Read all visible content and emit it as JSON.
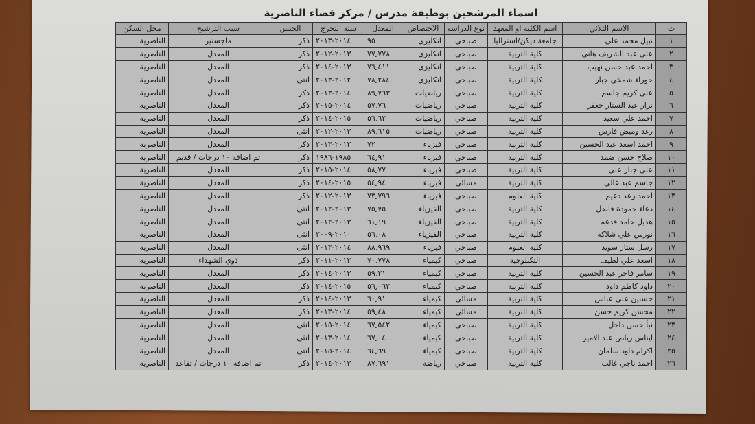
{
  "title": "اسماء المرشحين بوظيفة مدرس / مركز قضاء الناصرية",
  "headers": [
    "ت",
    "الاسم الثلاثي",
    "اسم الكليه او المعهد",
    "نوع الدراسه",
    "الاختصاص",
    "المعدل",
    "سنة التخرج",
    "الجنس",
    "سبب الترشيح",
    "محل السكن"
  ],
  "rows": [
    [
      "١",
      "نبيل محمد علي",
      "جامعة ديكن/استراليا",
      "صباحي",
      "انكليزي",
      "٩٥",
      "٢٠١٤-٢٠١٣",
      "ذكر",
      "ماجستير",
      "الناصرية"
    ],
    [
      "٢",
      "علي عبد الشريف هاني",
      "كلية التربية",
      "صباحي",
      "انكليزي",
      "٧٧٫٧٧٨",
      "٢٠١٣-٢٠١٢",
      "ذكر",
      "المعدل",
      "الناصرية"
    ],
    [
      "٣",
      "احمد عبد حسن نهيب",
      "كلية التربية",
      "صباحي",
      "انكليزي",
      "٧٦٫٤١١",
      "٢٠١٣-٢٠١٤",
      "ذكر",
      "المعدل",
      "الناصرية"
    ],
    [
      "٤",
      "حوراء شمخي جبار",
      "كلية التربية",
      "صباحي",
      "انكليزي",
      "٧٨٫٢٨٤",
      "٢٠١٢-٢٠١٣",
      "انثى",
      "المعدل",
      "الناصرية"
    ],
    [
      "٥",
      "علي كريم جاسم",
      "كلية التربية",
      "صباحي",
      "رياضيات",
      "٨٩٫٧٦٣",
      "٢٠١٤-٢٠١٣",
      "ذكر",
      "المعدل",
      "الناصرية"
    ],
    [
      "٦",
      "نزار عبد الستار جعفر",
      "كلية التربية",
      "صباحي",
      "رياضيات",
      "٥٧٫٧٦",
      "٢٠١٤-٢٠١٥",
      "ذكر",
      "المعدل",
      "الناصرية"
    ],
    [
      "٧",
      "احمد علي سعيد",
      "كلية التربية",
      "صباحي",
      "رياضيات",
      "٥٦٫٦٢",
      "٢٠١٥-٢٠١٤",
      "ذكر",
      "المعدل",
      "الناصرية"
    ],
    [
      "٨",
      "رغد وميض فارس",
      "كلية التربية",
      "صباحي",
      "رياضيات",
      "٨٩٫٦١٥",
      "٢٠١٣-٢٠١٢",
      "انثى",
      "المعدل",
      "الناصرية"
    ],
    [
      "٩",
      "احمد اسعد عبد الحسين",
      "كلية التربية",
      "صباحي",
      "فيزياء",
      "٧٢",
      "٢٠١٢-٢٠١٣",
      "ذكر",
      "المعدل",
      "الناصرية"
    ],
    [
      "١٠",
      "صلاح حسن ضمد",
      "كلية التربية",
      "صباحي",
      "فيزياء",
      "٦٤٫٩١",
      "١٩٨٥-١٩٨٦",
      "ذكر",
      "تم اضافة ١٠ درجات / قديم",
      "الناصرية"
    ],
    [
      "١١",
      "علي جبار علي",
      "كلية التربية",
      "صباحي",
      "فيزياء",
      "٥٨٫٧٧",
      "٢٠١٤-٢٠١٥",
      "ذكر",
      "المعدل",
      "الناصرية"
    ],
    [
      "١٢",
      "جاسم عبد غالي",
      "كلية التربية",
      "مسائي",
      "فيزياء",
      "٥٤٫٩٤",
      "٢٠١٥-٢٠١٤",
      "ذكر",
      "المعدل",
      "الناصرية"
    ],
    [
      "١٣",
      "احمد رعد دعيم",
      "كلية العلوم",
      "صباحي",
      "فيزياء",
      "٧٣٫٧٩٦",
      "٢٠١٣-٢٠١٢",
      "ذكر",
      "المعدل",
      "الناصرية"
    ],
    [
      "١٤",
      "دعاء حمودة فاضل",
      "كلية التربية",
      "صباحي",
      "الفيزياء",
      "٧٥٫٧٥",
      "٢٠١٣-٢٠١٢",
      "انثى",
      "المعدل",
      "الناصرية"
    ],
    [
      "١٥",
      "هديل حامد فدعم",
      "كلية التربية",
      "صباحي",
      "الفيزياء",
      "٦١٫١٩",
      "٢٠١٣-٢٠١٢",
      "انثى",
      "المعدل",
      "الناصرية"
    ],
    [
      "١٦",
      "نورس علي شلاكة",
      "كلية التربية",
      "صباحي",
      "الفيزياء",
      "٥٦٫٠٨",
      "٢٠١٠-٢٠٠٩",
      "انثى",
      "المعدل",
      "الناصرية"
    ],
    [
      "١٧",
      "رسل ستار سويد",
      "كلية العلوم",
      "صباحي",
      "فيزياء",
      "٨٨٫٩٦٩",
      "٢٠١٤-٢٠١٣",
      "انثى",
      "المعدل",
      "الناصرية"
    ],
    [
      "١٨",
      "اسعد علي لطيف",
      "التكنلوجية",
      "صباحي",
      "كيمياء",
      "٧٠٫٧٧٨",
      "٢٠١٢-٢٠١١",
      "ذكر",
      "ذوي الشهداء",
      "الناصرية"
    ],
    [
      "١٩",
      "سامر فاخر عبد الحسين",
      "كلية التربية",
      "صباحي",
      "كيمياء",
      "٥٩٫٢١",
      "٢٠١٣-٢٠١٤",
      "ذكر",
      "المعدل",
      "الناصرية"
    ],
    [
      "٢٠",
      "داود كاظم داود",
      "كلية التربية",
      "صباحي",
      "كيمياء",
      "٥٦٫٠٦٢",
      "٢٠١٥-٢٠١٤",
      "ذكر",
      "المعدل",
      "الناصرية"
    ],
    [
      "٢١",
      "حسنين علي عباس",
      "كلية التربية",
      "مسائي",
      "كيمياء",
      "٦٠٫٩١",
      "٢٠١٣-٢٠١٤",
      "ذكر",
      "المعدل",
      "الناصرية"
    ],
    [
      "٢٢",
      "محسن كريم حسن",
      "كلية التربية",
      "مسائي",
      "كيمياء",
      "٥٩٫٤٨",
      "٢٠١٤-٢٠١٣",
      "ذكر",
      "المعدل",
      "الناصرية"
    ],
    [
      "٢٣",
      "نبأ حسن داخل",
      "كلية التربية",
      "صباحي",
      "كيمياء",
      "٦٧٫٥٤٢",
      "٢٠١٤-٢٠١٥",
      "انثى",
      "المعدل",
      "الناصرية"
    ],
    [
      "٢٤",
      "ايناس رياض عبد الامير",
      "كلية التربية",
      "صباحي",
      "كيمياء",
      "٦٧٫٠٤",
      "٢٠١٤-٢٠١٣",
      "انثى",
      "المعدل",
      "الناصرية"
    ],
    [
      "٢٥",
      "اكرام داود سلمان",
      "كلية التربية",
      "صباحي",
      "كيمياء",
      "٦٤٫٦٩",
      "٢٠١٤-٢٠١٥",
      "انثى",
      "المعدل",
      "الناصرية"
    ],
    [
      "٢٦",
      "احمد ناجي غالب",
      "كلية التربية",
      "صباحي",
      "رياضة",
      "٨٧٫٦٩١",
      "٢٠١٣-٢٠١٤",
      "ذكر",
      "تم اضافة ١٠ درجات / تقاعد",
      "الناصرية"
    ]
  ]
}
